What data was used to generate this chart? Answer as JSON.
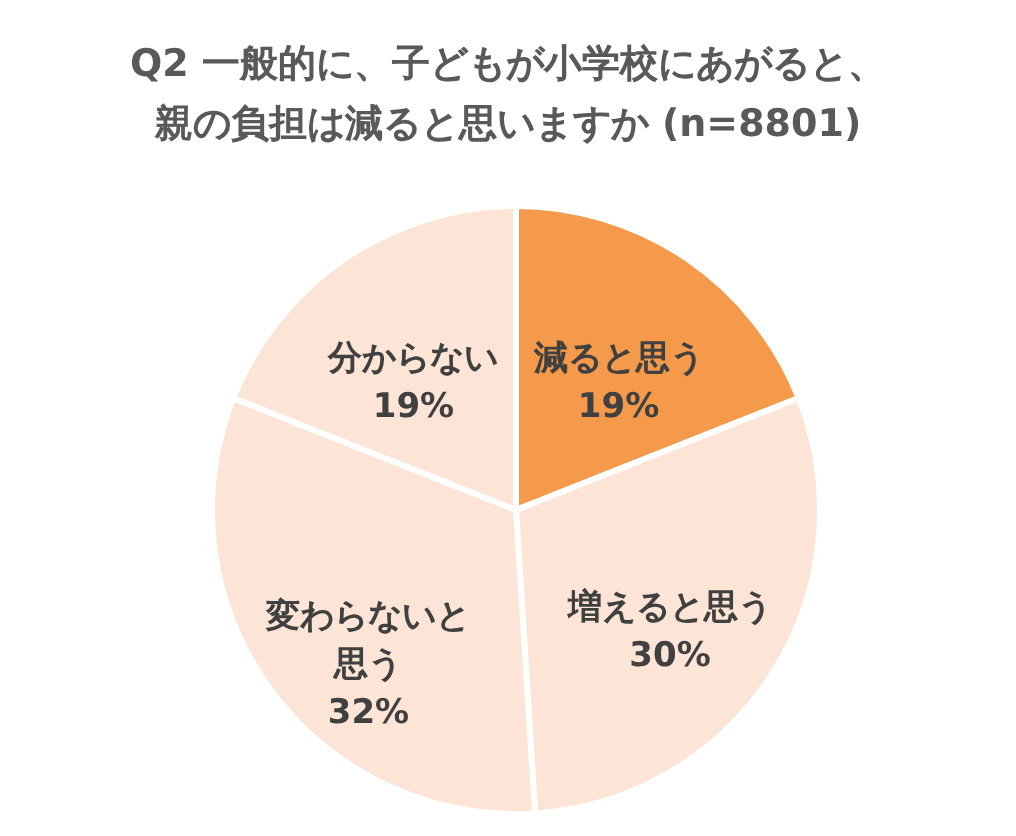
{
  "chart_data": {
    "type": "pie",
    "title": [
      "Q2 一般的に、子どもが小学校にあがると、",
      "親の負担は減ると思いますか (n=8801)"
    ],
    "categories": [
      "減ると思う",
      "増えると思う",
      "変わらないと思う",
      "分からない"
    ],
    "values": [
      19,
      30,
      32,
      19
    ],
    "value_labels": [
      "19%",
      "30%",
      "32%",
      "19%"
    ],
    "colors": [
      "#f59a4b",
      "#fce5d6",
      "#fce5d6",
      "#fce5d6"
    ],
    "legend": false
  }
}
